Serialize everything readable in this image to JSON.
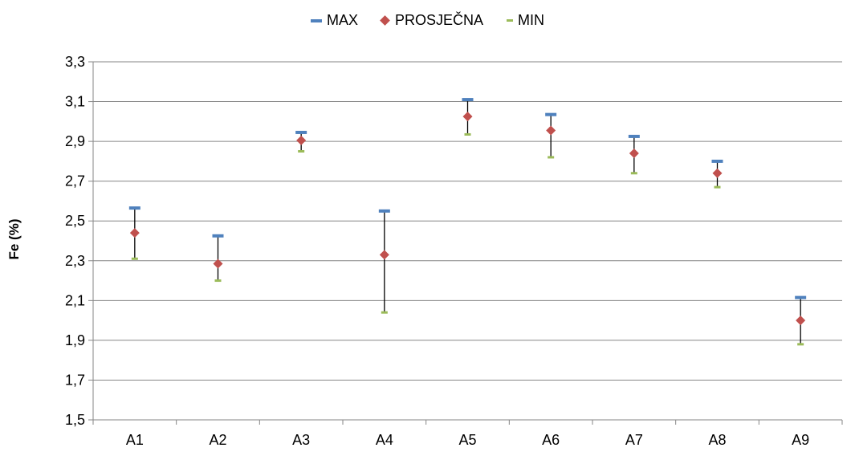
{
  "chart_data": {
    "type": "scatter",
    "title": "",
    "xlabel": "",
    "ylabel": "Fe (%)",
    "categories": [
      "A1",
      "A2",
      "A3",
      "A4",
      "A5",
      "A6",
      "A7",
      "A8",
      "A9"
    ],
    "ylim": [
      1.5,
      3.3
    ],
    "yticks": [
      "1,5",
      "1,7",
      "1,9",
      "2,1",
      "2,3",
      "2,5",
      "2,7",
      "2,9",
      "3,1",
      "3,3"
    ],
    "grid": true,
    "legend_position": "top",
    "series": [
      {
        "name": "MAX",
        "color": "#4f81bd",
        "values": [
          2.565,
          2.425,
          2.945,
          2.55,
          3.11,
          3.035,
          2.925,
          2.8,
          2.115
        ]
      },
      {
        "name": "PROSJEČNA",
        "color": "#c0504d",
        "values": [
          2.44,
          2.285,
          2.905,
          2.33,
          3.025,
          2.955,
          2.84,
          2.74,
          2.0
        ]
      },
      {
        "name": "MIN",
        "color": "#9bbb59",
        "values": [
          2.31,
          2.2,
          2.85,
          2.04,
          2.935,
          2.82,
          2.74,
          2.67,
          1.88
        ]
      }
    ]
  }
}
